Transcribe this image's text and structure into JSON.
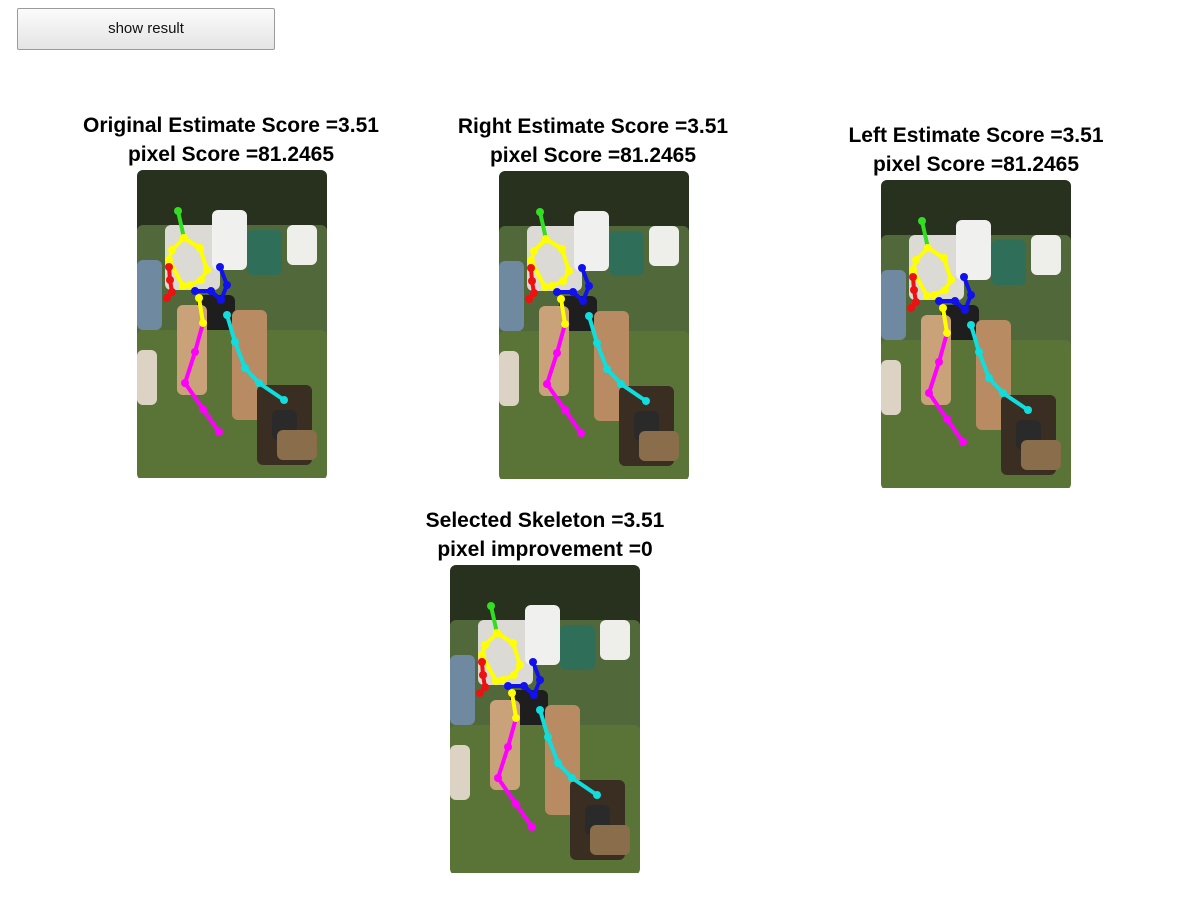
{
  "toolbar": {
    "show_result_label": "show result"
  },
  "panels": {
    "original": {
      "title1": "Original Estimate Score =3.51",
      "title2": "pixel Score =81.2465"
    },
    "right": {
      "title1": "Right Estimate Score =3.51",
      "title2": "pixel Score =81.2465"
    },
    "left": {
      "title1": "Left Estimate Score =3.51",
      "title2": "pixel Score =81.2465"
    },
    "selected": {
      "title1": "Selected Skeleton =3.51",
      "title2": "pixel improvement =0"
    }
  },
  "skeleton_colors": {
    "head": "#33dd22",
    "torso": "#ffff00",
    "right_arm": "#ee1111",
    "left_arm": "#1111ee",
    "right_leg": "#ff00ff",
    "left_leg": "#11dddd"
  }
}
